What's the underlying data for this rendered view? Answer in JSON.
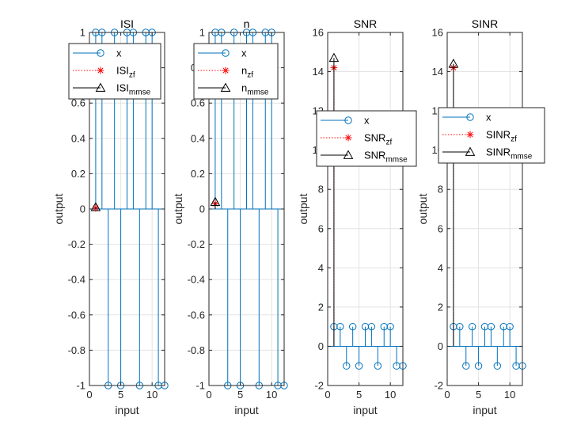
{
  "chart_data": [
    {
      "type": "stem",
      "title": "ISI",
      "xlabel": "input",
      "ylabel": "output",
      "xlim": [
        0,
        12
      ],
      "ylim": [
        -1,
        1
      ],
      "xticks": [
        0,
        5,
        10
      ],
      "yticks": [
        -1,
        -0.8,
        -0.6,
        -0.4,
        -0.2,
        0,
        0.2,
        0.4,
        0.6,
        0.8,
        1
      ],
      "ytick_labels": [
        "-1",
        "-0.8",
        "-0.6",
        "-0.4",
        "-0.2",
        "0",
        "0.2",
        "0.4",
        "0.6",
        "0.8",
        "1"
      ],
      "grid": true,
      "legend_position": "top-left",
      "series": [
        {
          "name": "x",
          "name_sub": "",
          "marker": "circle",
          "color": "#0072BD",
          "x": [
            1,
            2,
            3,
            4,
            5,
            6,
            7,
            8,
            9,
            10,
            11,
            12
          ],
          "values": [
            1,
            1,
            -1,
            1,
            -1,
            1,
            1,
            -1,
            1,
            1,
            -1,
            -1
          ]
        },
        {
          "name": "ISI",
          "name_sub": "zf",
          "marker": "asterisk",
          "color": "#FF0000",
          "x": [
            1
          ],
          "values": [
            0.005
          ]
        },
        {
          "name": "ISI",
          "name_sub": "mmse",
          "marker": "triangle",
          "color": "#000000",
          "x": [
            1
          ],
          "values": [
            0.01
          ]
        }
      ]
    },
    {
      "type": "stem",
      "title": "n",
      "xlabel": "input",
      "ylabel": "output",
      "xlim": [
        0,
        12
      ],
      "ylim": [
        -1,
        1
      ],
      "xticks": [
        0,
        5,
        10
      ],
      "yticks": [
        -1,
        -0.8,
        -0.6,
        -0.4,
        -0.2,
        0,
        0.2,
        0.4,
        0.6,
        0.8,
        1
      ],
      "ytick_labels": [
        "-1",
        "-0.8",
        "-0.6",
        "-0.4",
        "-0.2",
        "0",
        "0.2",
        "0.4",
        "0.6",
        "0.8",
        "1"
      ],
      "grid": true,
      "legend_position": "top-left",
      "series": [
        {
          "name": "x",
          "name_sub": "",
          "marker": "circle",
          "color": "#0072BD",
          "x": [
            1,
            2,
            3,
            4,
            5,
            6,
            7,
            8,
            9,
            10,
            11,
            12
          ],
          "values": [
            1,
            1,
            -1,
            1,
            -1,
            1,
            1,
            -1,
            1,
            1,
            -1,
            -1
          ]
        },
        {
          "name": "n",
          "name_sub": "zf",
          "marker": "asterisk",
          "color": "#FF0000",
          "x": [
            1
          ],
          "values": [
            0.03
          ]
        },
        {
          "name": "n",
          "name_sub": "mmse",
          "marker": "triangle",
          "color": "#000000",
          "x": [
            1
          ],
          "values": [
            0.04
          ]
        }
      ]
    },
    {
      "type": "stem",
      "title": "SNR",
      "xlabel": "input",
      "ylabel": "output",
      "xlim": [
        0,
        12
      ],
      "ylim": [
        -2,
        16
      ],
      "xticks": [
        0,
        5,
        10
      ],
      "yticks": [
        -2,
        0,
        2,
        4,
        6,
        8,
        10,
        12,
        14,
        16
      ],
      "ytick_labels": [
        "-2",
        "0",
        "2",
        "4",
        "6",
        "8",
        "10",
        "12",
        "14",
        "16"
      ],
      "grid": true,
      "legend_position": "top-right",
      "series": [
        {
          "name": "x",
          "name_sub": "",
          "marker": "circle",
          "color": "#0072BD",
          "x": [
            1,
            2,
            3,
            4,
            5,
            6,
            7,
            8,
            9,
            10,
            11,
            12
          ],
          "values": [
            1,
            1,
            -1,
            1,
            -1,
            1,
            1,
            -1,
            1,
            1,
            -1,
            -1
          ]
        },
        {
          "name": "SNR",
          "name_sub": "zf",
          "marker": "asterisk",
          "color": "#FF0000",
          "x": [
            1
          ],
          "values": [
            14.2
          ]
        },
        {
          "name": "SNR",
          "name_sub": "mmse",
          "marker": "triangle",
          "color": "#000000",
          "x": [
            1
          ],
          "values": [
            14.7
          ]
        }
      ]
    },
    {
      "type": "stem",
      "title": "SINR",
      "xlabel": "input",
      "ylabel": "output",
      "xlim": [
        0,
        12
      ],
      "ylim": [
        -2,
        16
      ],
      "xticks": [
        0,
        5,
        10
      ],
      "yticks": [
        -2,
        0,
        2,
        4,
        6,
        8,
        10,
        12,
        14,
        16
      ],
      "ytick_labels": [
        "-2",
        "0",
        "2",
        "4",
        "6",
        "8",
        "10",
        "12",
        "14",
        "16"
      ],
      "grid": true,
      "legend_position": "top-right",
      "series": [
        {
          "name": "x",
          "name_sub": "",
          "marker": "circle",
          "color": "#0072BD",
          "x": [
            1,
            2,
            3,
            4,
            5,
            6,
            7,
            8,
            9,
            10,
            11,
            12
          ],
          "values": [
            1,
            1,
            -1,
            1,
            -1,
            1,
            1,
            -1,
            1,
            1,
            -1,
            -1
          ]
        },
        {
          "name": "SINR",
          "name_sub": "zf",
          "marker": "asterisk",
          "color": "#FF0000",
          "x": [
            1
          ],
          "values": [
            14.2
          ]
        },
        {
          "name": "SINR",
          "name_sub": "mmse",
          "marker": "triangle",
          "color": "#000000",
          "x": [
            1
          ],
          "values": [
            14.4
          ]
        }
      ]
    }
  ]
}
